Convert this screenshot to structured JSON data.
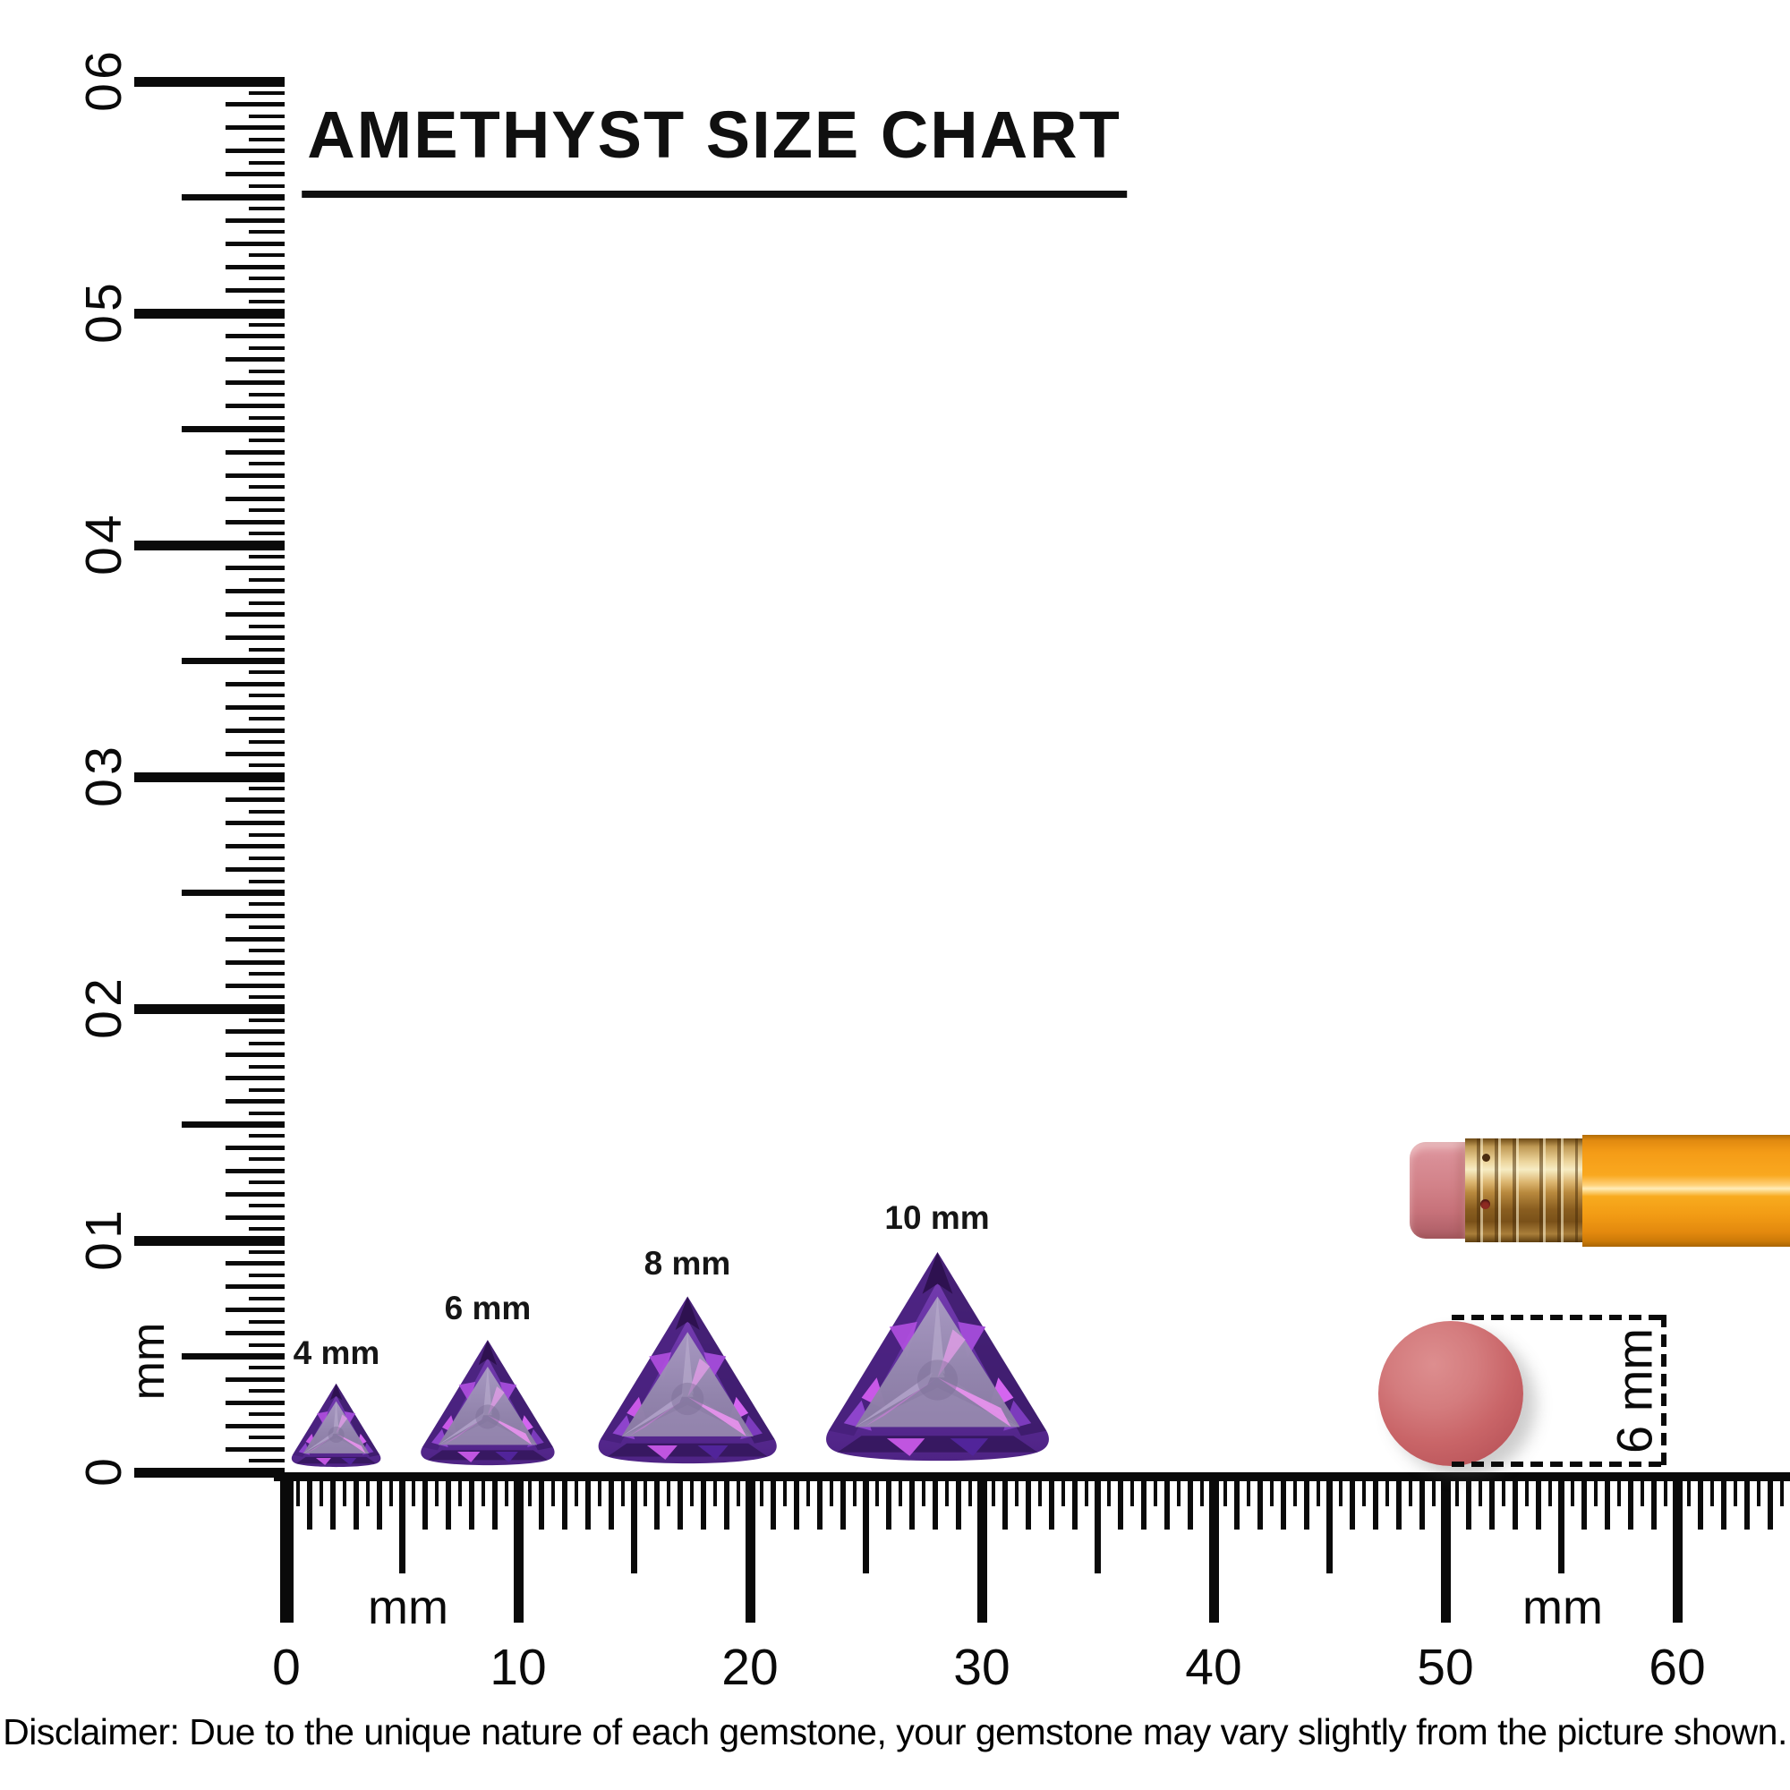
{
  "title": "AMETHYST SIZE CHART",
  "gems": [
    {
      "label": "4 mm",
      "size_mm": 4
    },
    {
      "label": "6 mm",
      "size_mm": 6
    },
    {
      "label": "8 mm",
      "size_mm": 8
    },
    {
      "label": "10 mm",
      "size_mm": 10
    }
  ],
  "rulers": {
    "unit": "mm",
    "vertical": {
      "min_mm": 0,
      "max_mm": 60,
      "labels": [
        "0",
        "10",
        "20",
        "30",
        "40",
        "50",
        "60"
      ],
      "unit_label": "mm"
    },
    "horizontal": {
      "min_mm": 0,
      "max_mm": 60,
      "labels": [
        "0",
        "10",
        "20",
        "30",
        "40",
        "50",
        "60"
      ],
      "unit_labels": [
        "mm",
        "mm"
      ]
    }
  },
  "round_eraser": {
    "measure_label": "6 mm",
    "color": "#c96568"
  },
  "pencil": {
    "eraser_color": "#d28289",
    "ferrule_color": "#dcb671",
    "body_color": "#f59c17"
  },
  "disclaimer": "Disclaimer: Due to the unique nature of each gemstone, your gemstone may vary slightly from the picture shown.",
  "colors": {
    "amethyst_crown": "#5e2f9a",
    "amethyst_dark": "#3f1c6e",
    "amethyst_magenta": "#c653e6",
    "amethyst_table": "#9487ad",
    "ink": "#0a0a0a",
    "background": "#ffffff"
  }
}
